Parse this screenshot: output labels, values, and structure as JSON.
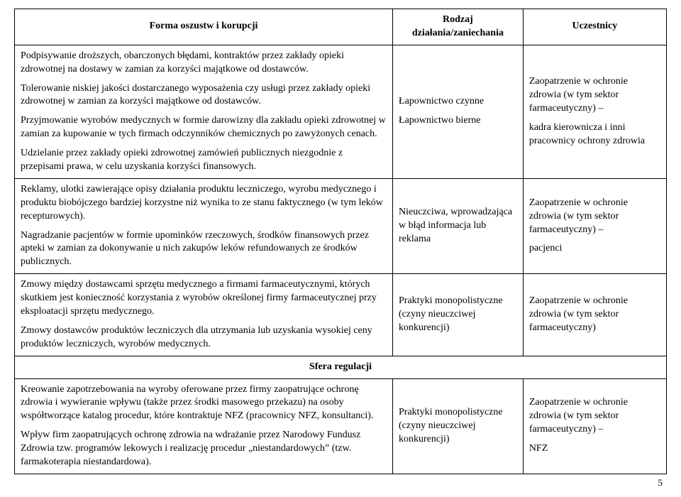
{
  "headers": {
    "col1": "Forma oszustw i korupcji",
    "col2": "Rodzaj działania/zaniechania",
    "col3": "Uczestnicy"
  },
  "rows": [
    {
      "col1_paragraphs": [
        "Podpisywanie droższych, obarczonych błędami, kontraktów przez zakłady opieki zdrowotnej na dostawy w zamian za korzyści majątkowe od dostawców.",
        "Tolerowanie niskiej jakości dostarczanego wyposażenia czy usługi przez zakłady opieki zdrowotnej w zamian za korzyści majątkowe od dostawców.",
        "Przyjmowanie wyrobów medycznych w formie darowizny dla zakładu opieki zdrowotnej w zamian za kupowanie w tych firmach odczynników chemicznych po zawyżonych cenach.",
        "Udzielanie przez zakłady opieki zdrowotnej zamówień publicznych niezgodnie z przepisami prawa, w celu uzyskania korzyści finansowych."
      ],
      "col2_paragraphs": [
        "Łapownictwo czynne",
        "Łapownictwo bierne"
      ],
      "col3_paragraphs": [
        "Zaopatrzenie w ochronie zdrowia (w tym sektor farmaceutyczny) –",
        "kadra kierownicza i inni pracownicy ochrony zdrowia"
      ]
    },
    {
      "col1_paragraphs": [
        "Reklamy, ulotki zawierające opisy działania produktu leczniczego, wyrobu medycznego i produktu biobójczego bardziej korzystne niż wynika to ze stanu faktycznego (w tym leków recepturowych).",
        "Nagradzanie pacjentów w formie upominków rzeczowych, środków finansowych przez apteki w zamian za dokonywanie u nich zakupów leków refundowanych ze środków publicznych."
      ],
      "col2_paragraphs": [
        "Nieuczciwa, wprowadzająca w błąd informacja lub reklama"
      ],
      "col3_paragraphs": [
        "Zaopatrzenie w ochronie zdrowia (w tym sektor farmaceutyczny) –",
        "pacjenci"
      ]
    },
    {
      "col1_paragraphs": [
        "Zmowy między dostawcami sprzętu medycznego a firmami farmaceutycznymi, których skutkiem jest konieczność korzystania z wyrobów określonej firmy farmaceutycznej przy eksploatacji sprzętu medycznego.",
        "Zmowy dostawców produktów leczniczych dla utrzymania lub uzyskania wysokiej ceny produktów leczniczych, wyrobów medycznych."
      ],
      "col2_paragraphs": [
        "Praktyki monopolistyczne (czyny nieuczciwej konkurencji)"
      ],
      "col3_paragraphs": [
        "Zaopatrzenie w ochronie zdrowia (w tym sektor farmaceutyczny)"
      ]
    }
  ],
  "section_header": "Sfera regulacji",
  "rows2": [
    {
      "col1_paragraphs": [
        "Kreowanie zapotrzebowania na wyroby oferowane przez firmy zaopatrujące ochronę zdrowia i wywieranie wpływu (także przez środki masowego przekazu) na osoby współtworzące katalog procedur, które kontraktuje NFZ (pracownicy NFZ, konsultanci).",
        "Wpływ firm zaopatrujących ochronę zdrowia na wdrażanie przez Narodowy Fundusz Zdrowia tzw. programów lekowych i realizację procedur „niestandardowych” (tzw. farmakoterapia niestandardowa)."
      ],
      "col2_paragraphs": [
        "Praktyki monopolistyczne (czyny nieuczciwej konkurencji)"
      ],
      "col3_paragraphs": [
        "Zaopatrzenie w ochronie zdrowia (w tym sektor farmaceutyczny) –",
        "NFZ"
      ]
    }
  ],
  "page_number": "5"
}
